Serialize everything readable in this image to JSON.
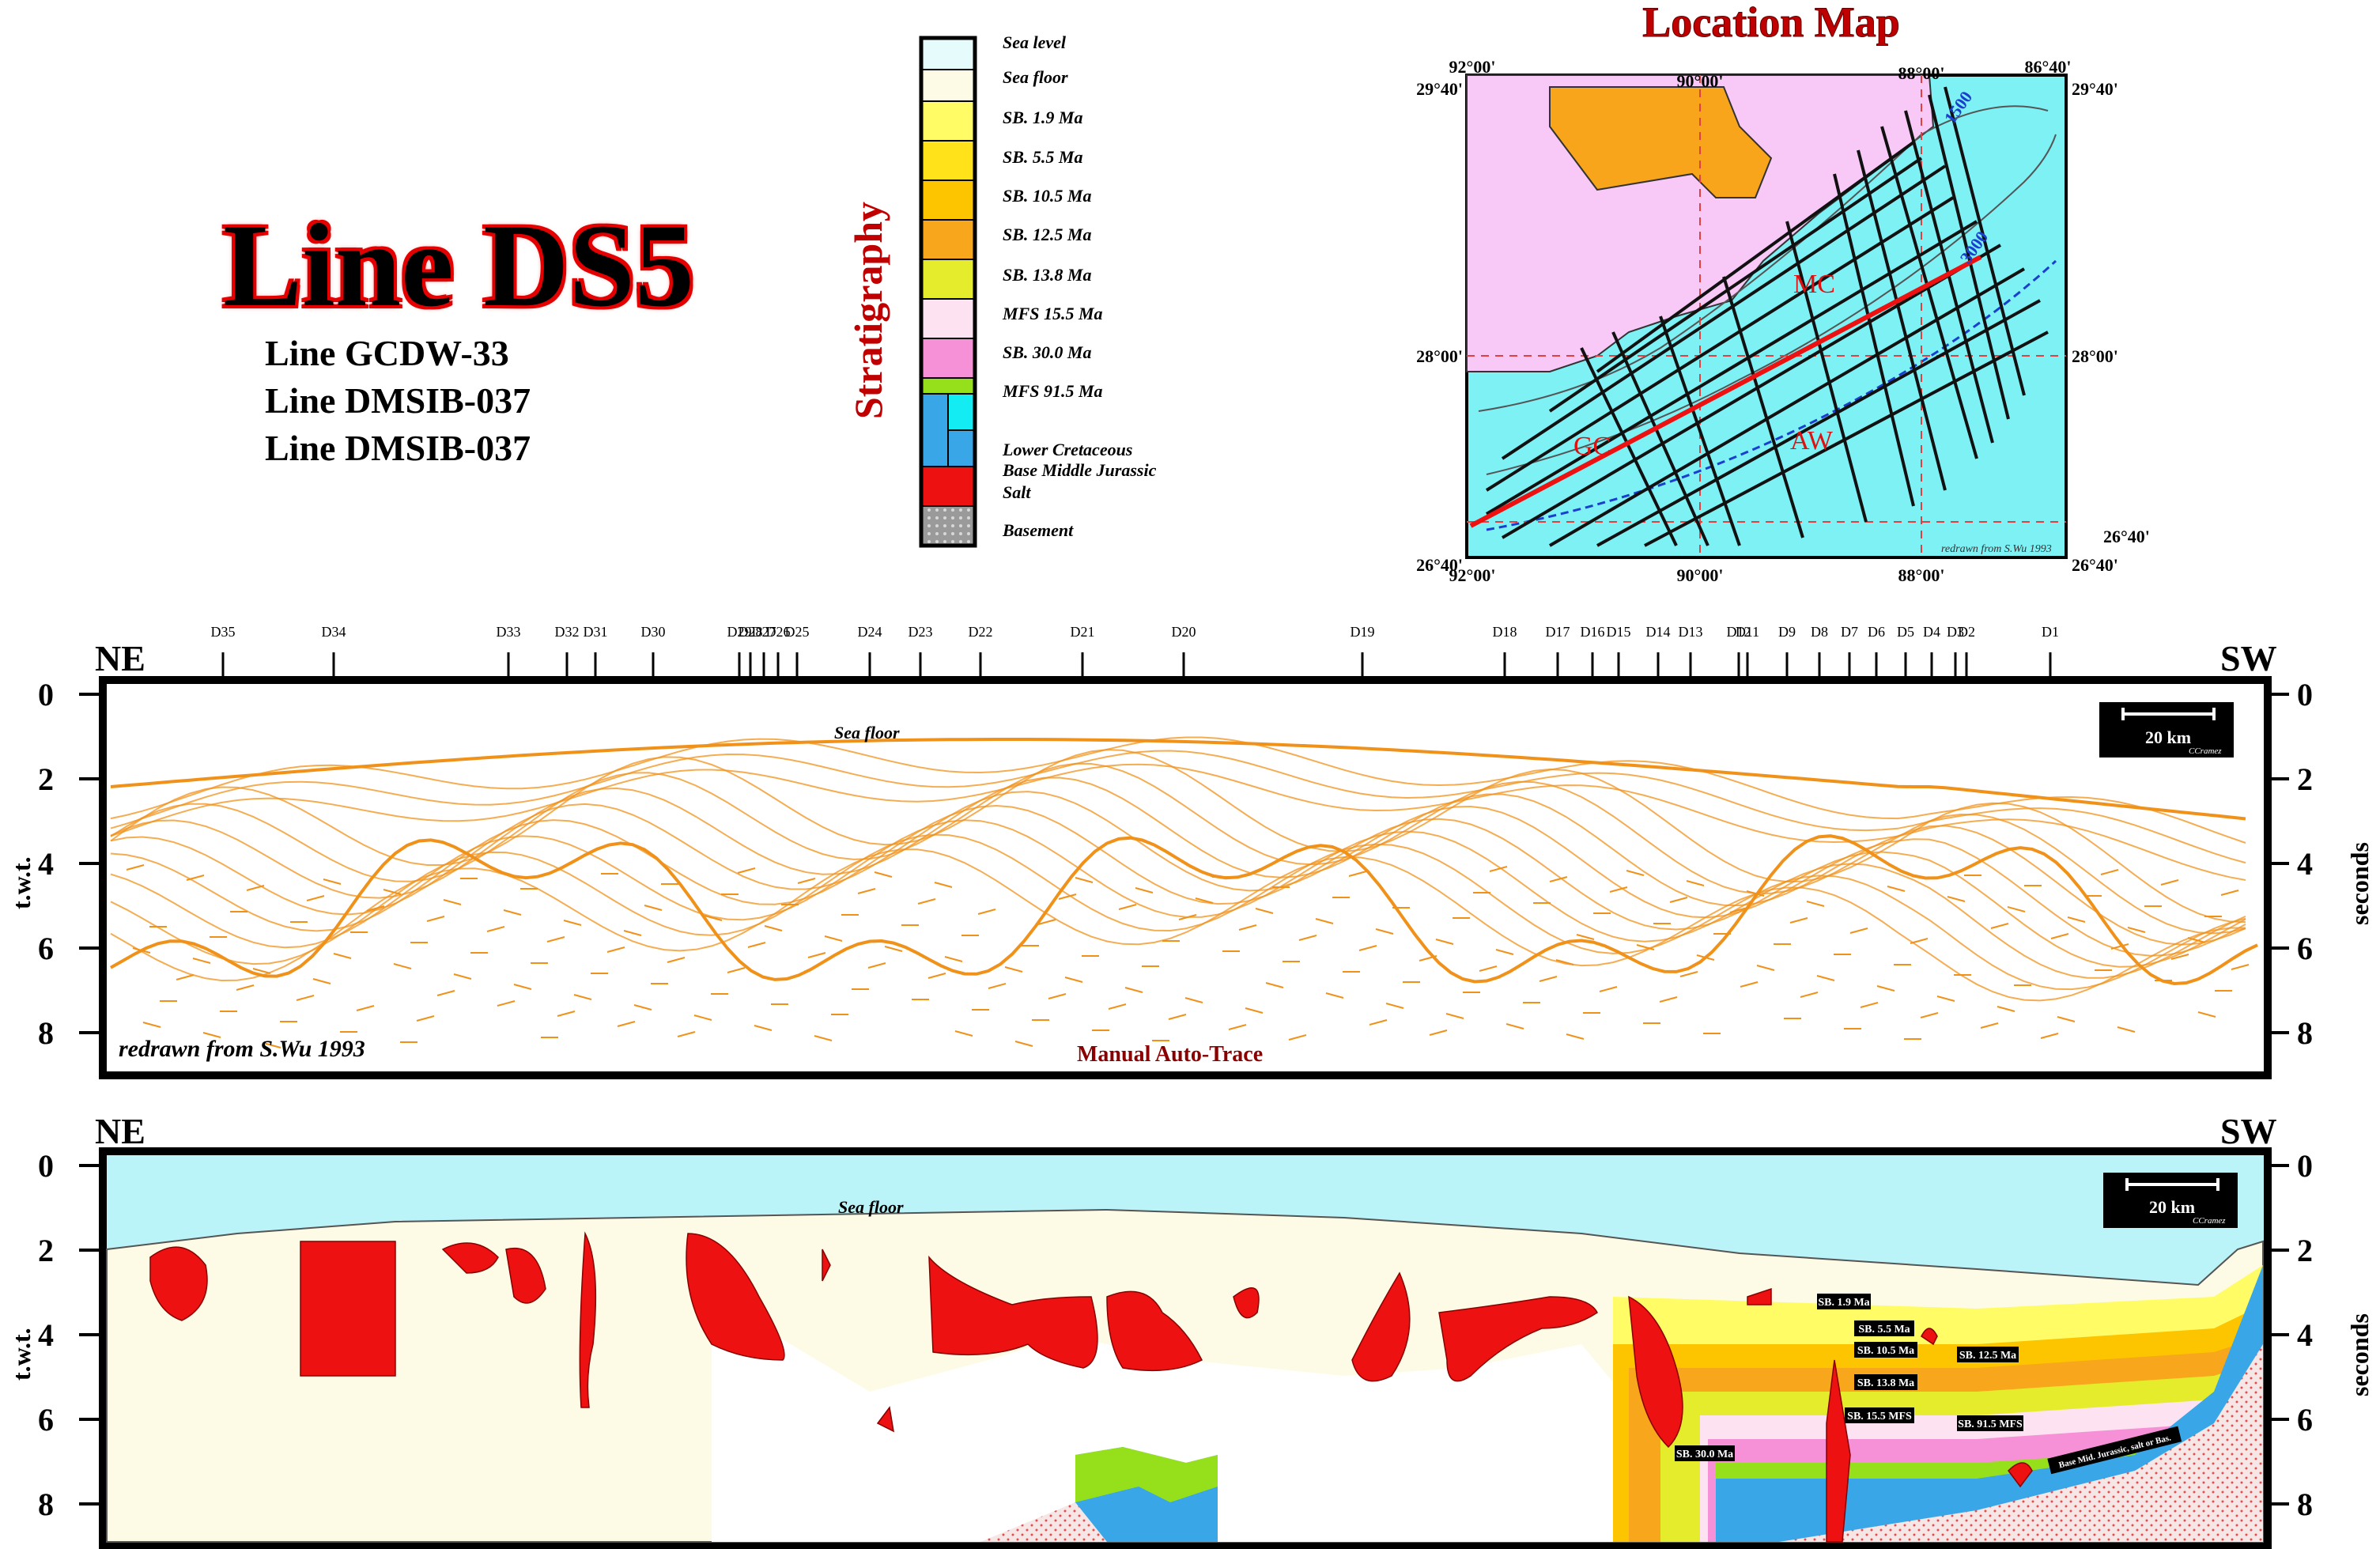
{
  "title": "Line DS5",
  "subtitles": [
    "Line GCDW-33",
    "Line DMSIB-037",
    "Line DMSIB-037"
  ],
  "stratigraphy": {
    "heading": "Stratigraphy",
    "items": [
      {
        "label": "Sea level",
        "color": "#e6fbfb"
      },
      {
        "label": "Sea floor",
        "color": "#fdfbe5"
      },
      {
        "label": "SB. 1.9 Ma",
        "color": "#fffc66"
      },
      {
        "label": "SB. 5.5 Ma",
        "color": "#ffe21a"
      },
      {
        "label": "SB. 10.5 Ma",
        "color": "#fdc400"
      },
      {
        "label": "SB. 12.5 Ma",
        "color": "#f8a61c"
      },
      {
        "label": "SB. 13.8 Ma",
        "color": "#e5ec2b"
      },
      {
        "label": "MFS 15.5 Ma",
        "color": "#fde2f2"
      },
      {
        "label": "SB. 30.0 Ma",
        "color": "#f691d8"
      },
      {
        "label": "MFS 91.5 Ma",
        "color": "#96e01b"
      },
      {
        "label": "Lower Cretaceous",
        "color": "#39a6e8"
      },
      {
        "label": "Base Middle Jurassic",
        "color": "#12ecf2"
      },
      {
        "label": "Salt",
        "color": "#ee1111"
      },
      {
        "label": "Basement",
        "color": "#a0a0a0"
      }
    ]
  },
  "location_map": {
    "title": "Location Map",
    "lon_labels_top": [
      "92°00'",
      "90°00'",
      "88°00'",
      "86°40'"
    ],
    "lon_labels_bottom": [
      "92°00'",
      "90°00'",
      "88°00'"
    ],
    "lat_labels": [
      "29°40'",
      "28°00'",
      "26°40'"
    ],
    "regions": [
      "MC",
      "GC",
      "AW"
    ],
    "contours": [
      "1500",
      "3000"
    ],
    "credit": "redrawn from S.Wu 1993"
  },
  "section_labels": {
    "well_markers": [
      "D35",
      "D34",
      "D33",
      "D32",
      "D31",
      "D30",
      "D29",
      "D28",
      "D27",
      "D26",
      "D25",
      "D24",
      "D23",
      "D22",
      "D21",
      "D20",
      "D19",
      "D18",
      "D17",
      "D16",
      "D15",
      "D14",
      "D13",
      "D12",
      "D11",
      "D9",
      "D8",
      "D7",
      "D6",
      "D5",
      "D4",
      "D3",
      "D2",
      "D1"
    ],
    "left_end": "NE",
    "right_end": "SW",
    "depth_ticks": [
      "0",
      "2",
      "4",
      "6",
      "8"
    ],
    "y_axis_left": "t.w.t.",
    "y_axis_right": "seconds",
    "sea_floor": "Sea floor",
    "scale_bar": "20 km",
    "author": "CCramez"
  },
  "panel1": {
    "credit": "redrawn from S.Wu 1993",
    "caption": "Manual Auto-Trace"
  },
  "panel2": {
    "horizon_labels": [
      "SB. 1.9 Ma",
      "SB. 5.5 Ma",
      "SB. 10.5 Ma",
      "SB. 13.8 Ma",
      "SB. 15.5 MFS",
      "SB. 30.0 Ma",
      "SB. 12.5 Ma",
      "SB. 91.5 MFS",
      "Base Mid. Jurassic, salt or Bas."
    ]
  }
}
